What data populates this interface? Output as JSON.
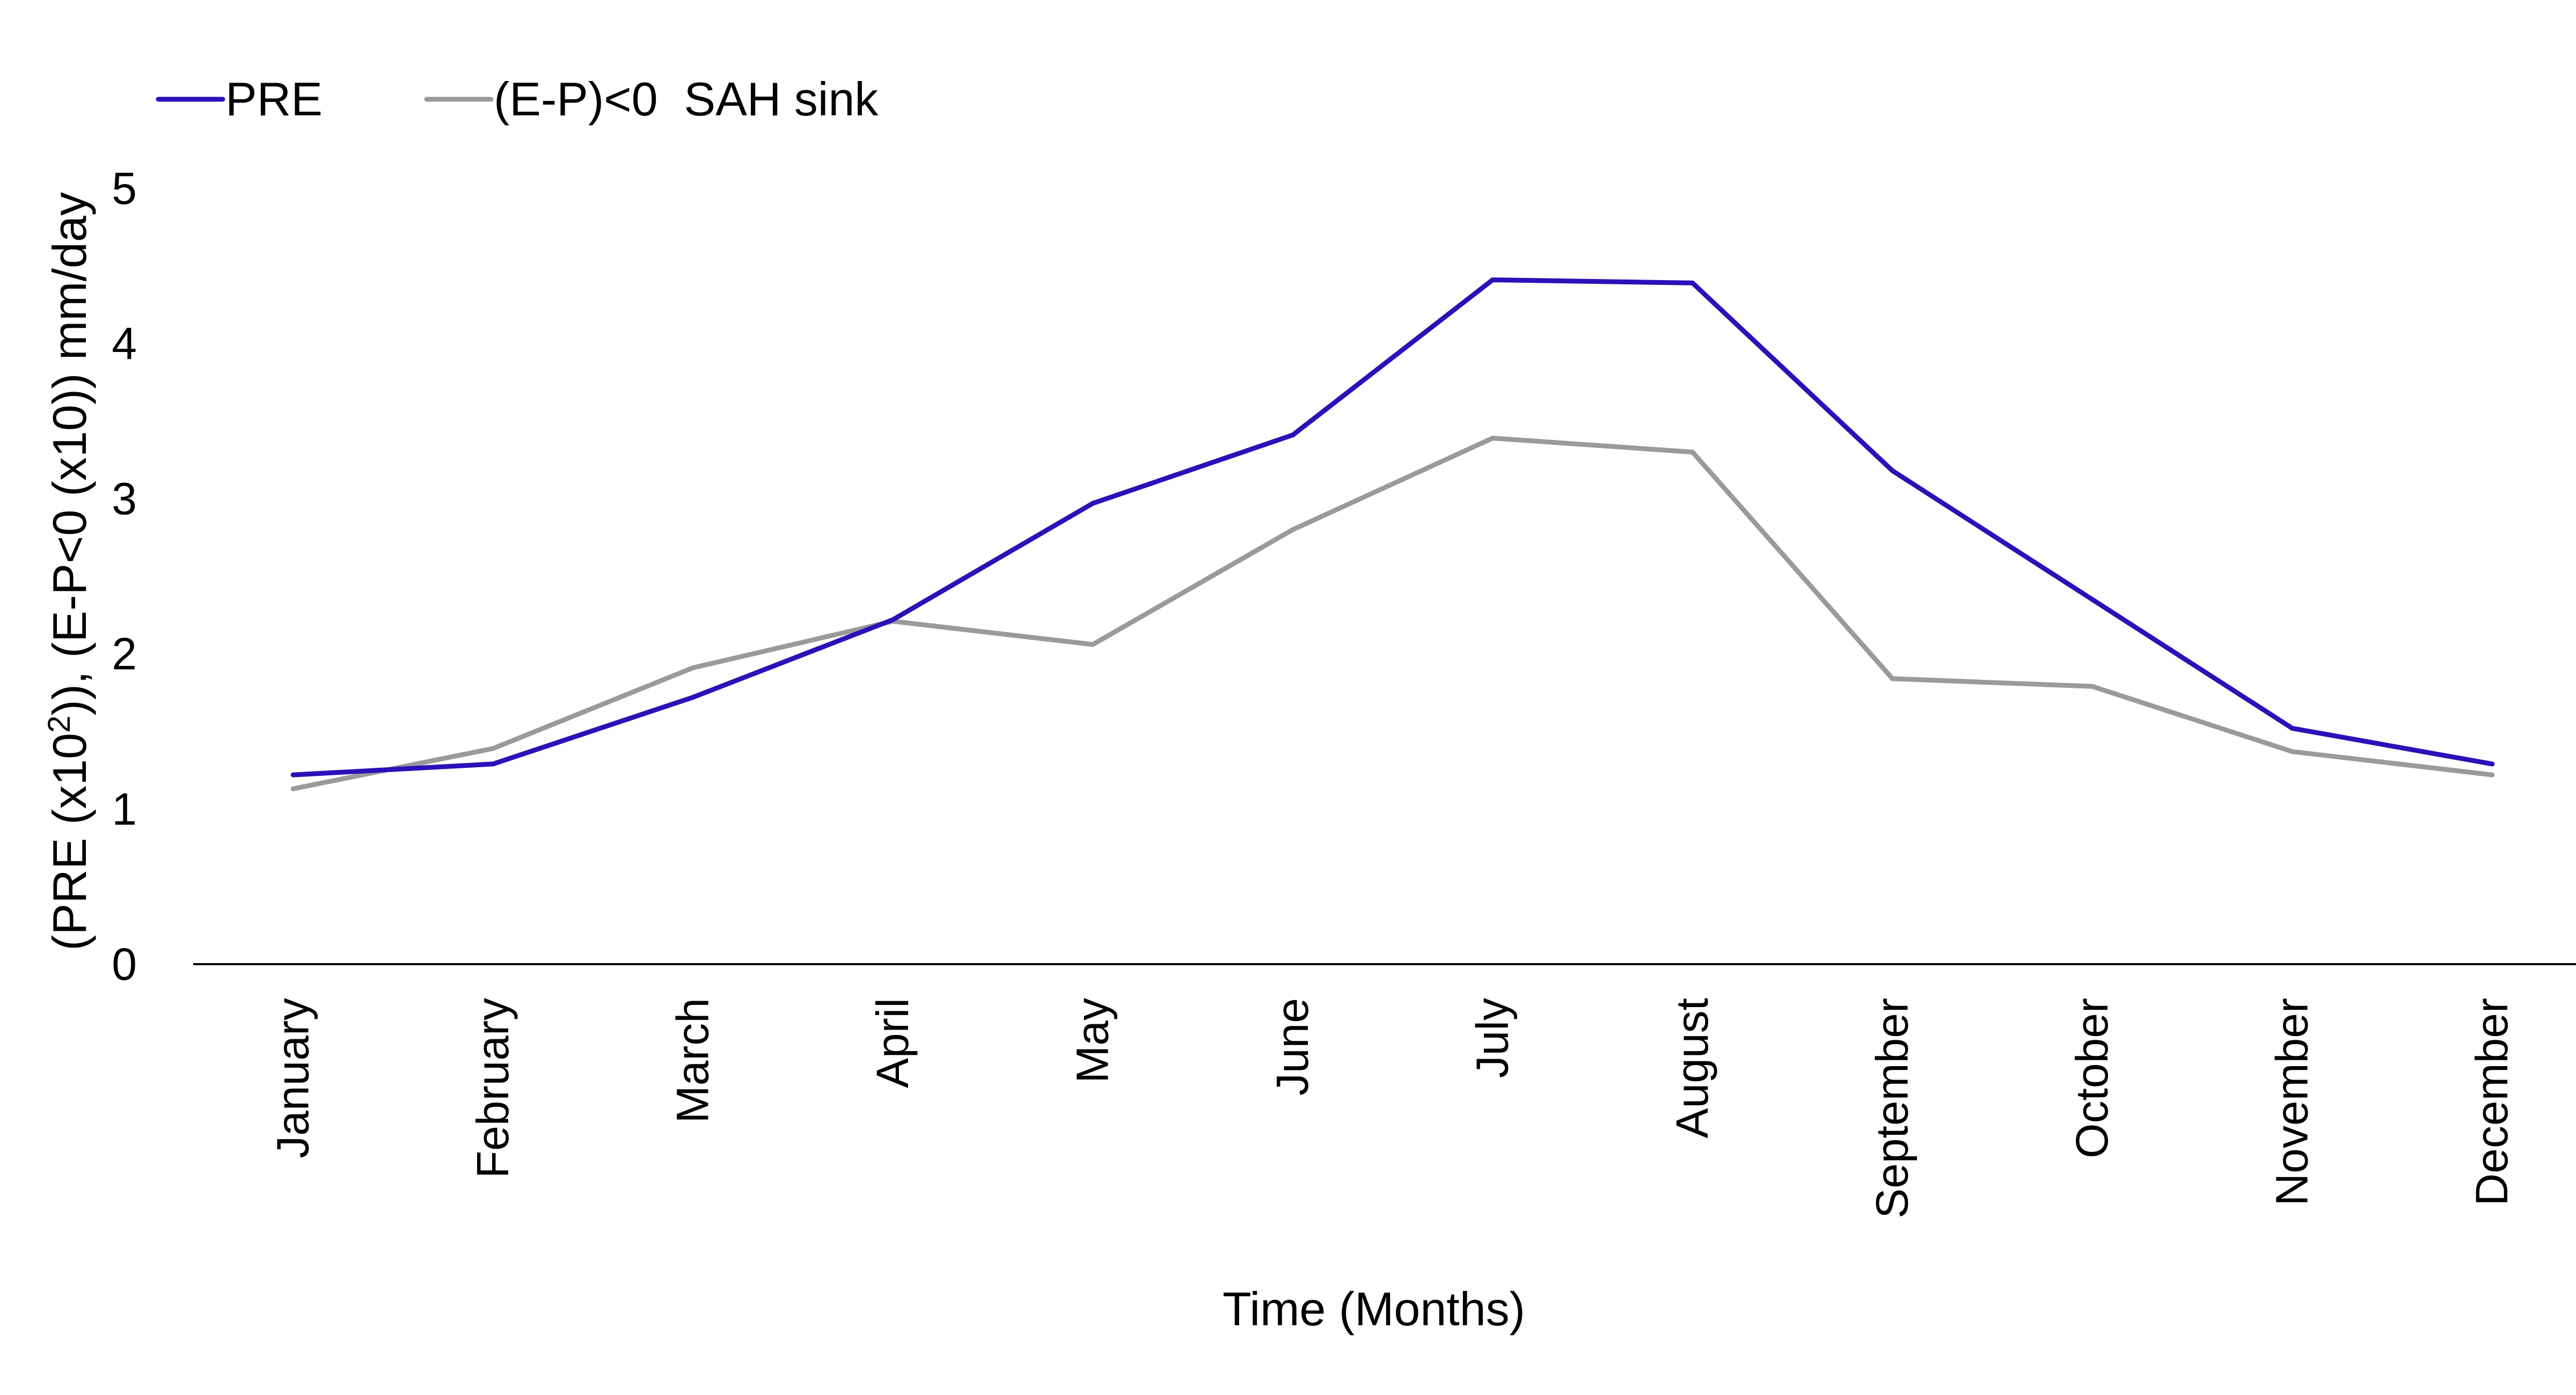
{
  "chart_data": {
    "type": "line",
    "title": "",
    "xlabel": "Time (Months)",
    "ylabel": {
      "part1": "(PRE (x10",
      "sup": "2",
      "part2": ")), (E-P<0 (x10)) mm/day"
    },
    "ylim": [
      0,
      5
    ],
    "yticks": [
      "0",
      "1",
      "2",
      "3",
      "4",
      "5"
    ],
    "grid": false,
    "legend_position": "top-left",
    "categories": [
      "January",
      "February",
      "March",
      "April",
      "May",
      "June",
      "July",
      "August",
      "September",
      "October",
      "November",
      "December"
    ],
    "series": [
      {
        "name": "PRE",
        "color": "#2E0FB8",
        "values": [
          1.22,
          1.29,
          1.72,
          2.22,
          2.97,
          3.41,
          4.41,
          4.39,
          3.18,
          2.35,
          1.52,
          1.29
        ]
      },
      {
        "name": "(E-P)<0  SAH sink",
        "color": "#9A9A9A",
        "values": [
          1.13,
          1.39,
          1.91,
          2.21,
          2.06,
          2.8,
          3.39,
          3.3,
          1.84,
          1.79,
          1.37,
          1.22
        ]
      }
    ]
  }
}
